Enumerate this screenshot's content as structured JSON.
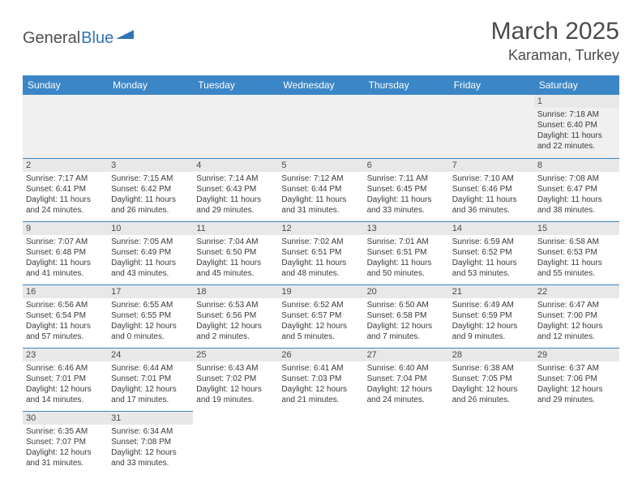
{
  "logo": {
    "part1": "General",
    "part2": "Blue",
    "shape_color": "#2f74b5"
  },
  "title": "March 2025",
  "location": "Karaman, Turkey",
  "header_bg": "#3b86c6",
  "header_fg": "#ffffff",
  "border_color": "#3b86c6",
  "daynum_bg": "#e8e8e8",
  "empty_bg": "#f0f0f0",
  "text_color": "#3a3a3a",
  "days": [
    "Sunday",
    "Monday",
    "Tuesday",
    "Wednesday",
    "Thursday",
    "Friday",
    "Saturday"
  ],
  "weeks": [
    [
      null,
      null,
      null,
      null,
      null,
      null,
      {
        "n": "1",
        "sunrise": "7:18 AM",
        "sunset": "6:40 PM",
        "dl": "11 hours and 22 minutes."
      }
    ],
    [
      {
        "n": "2",
        "sunrise": "7:17 AM",
        "sunset": "6:41 PM",
        "dl": "11 hours and 24 minutes."
      },
      {
        "n": "3",
        "sunrise": "7:15 AM",
        "sunset": "6:42 PM",
        "dl": "11 hours and 26 minutes."
      },
      {
        "n": "4",
        "sunrise": "7:14 AM",
        "sunset": "6:43 PM",
        "dl": "11 hours and 29 minutes."
      },
      {
        "n": "5",
        "sunrise": "7:12 AM",
        "sunset": "6:44 PM",
        "dl": "11 hours and 31 minutes."
      },
      {
        "n": "6",
        "sunrise": "7:11 AM",
        "sunset": "6:45 PM",
        "dl": "11 hours and 33 minutes."
      },
      {
        "n": "7",
        "sunrise": "7:10 AM",
        "sunset": "6:46 PM",
        "dl": "11 hours and 36 minutes."
      },
      {
        "n": "8",
        "sunrise": "7:08 AM",
        "sunset": "6:47 PM",
        "dl": "11 hours and 38 minutes."
      }
    ],
    [
      {
        "n": "9",
        "sunrise": "7:07 AM",
        "sunset": "6:48 PM",
        "dl": "11 hours and 41 minutes."
      },
      {
        "n": "10",
        "sunrise": "7:05 AM",
        "sunset": "6:49 PM",
        "dl": "11 hours and 43 minutes."
      },
      {
        "n": "11",
        "sunrise": "7:04 AM",
        "sunset": "6:50 PM",
        "dl": "11 hours and 45 minutes."
      },
      {
        "n": "12",
        "sunrise": "7:02 AM",
        "sunset": "6:51 PM",
        "dl": "11 hours and 48 minutes."
      },
      {
        "n": "13",
        "sunrise": "7:01 AM",
        "sunset": "6:51 PM",
        "dl": "11 hours and 50 minutes."
      },
      {
        "n": "14",
        "sunrise": "6:59 AM",
        "sunset": "6:52 PM",
        "dl": "11 hours and 53 minutes."
      },
      {
        "n": "15",
        "sunrise": "6:58 AM",
        "sunset": "6:53 PM",
        "dl": "11 hours and 55 minutes."
      }
    ],
    [
      {
        "n": "16",
        "sunrise": "6:56 AM",
        "sunset": "6:54 PM",
        "dl": "11 hours and 57 minutes."
      },
      {
        "n": "17",
        "sunrise": "6:55 AM",
        "sunset": "6:55 PM",
        "dl": "12 hours and 0 minutes."
      },
      {
        "n": "18",
        "sunrise": "6:53 AM",
        "sunset": "6:56 PM",
        "dl": "12 hours and 2 minutes."
      },
      {
        "n": "19",
        "sunrise": "6:52 AM",
        "sunset": "6:57 PM",
        "dl": "12 hours and 5 minutes."
      },
      {
        "n": "20",
        "sunrise": "6:50 AM",
        "sunset": "6:58 PM",
        "dl": "12 hours and 7 minutes."
      },
      {
        "n": "21",
        "sunrise": "6:49 AM",
        "sunset": "6:59 PM",
        "dl": "12 hours and 9 minutes."
      },
      {
        "n": "22",
        "sunrise": "6:47 AM",
        "sunset": "7:00 PM",
        "dl": "12 hours and 12 minutes."
      }
    ],
    [
      {
        "n": "23",
        "sunrise": "6:46 AM",
        "sunset": "7:01 PM",
        "dl": "12 hours and 14 minutes."
      },
      {
        "n": "24",
        "sunrise": "6:44 AM",
        "sunset": "7:01 PM",
        "dl": "12 hours and 17 minutes."
      },
      {
        "n": "25",
        "sunrise": "6:43 AM",
        "sunset": "7:02 PM",
        "dl": "12 hours and 19 minutes."
      },
      {
        "n": "26",
        "sunrise": "6:41 AM",
        "sunset": "7:03 PM",
        "dl": "12 hours and 21 minutes."
      },
      {
        "n": "27",
        "sunrise": "6:40 AM",
        "sunset": "7:04 PM",
        "dl": "12 hours and 24 minutes."
      },
      {
        "n": "28",
        "sunrise": "6:38 AM",
        "sunset": "7:05 PM",
        "dl": "12 hours and 26 minutes."
      },
      {
        "n": "29",
        "sunrise": "6:37 AM",
        "sunset": "7:06 PM",
        "dl": "12 hours and 29 minutes."
      }
    ],
    [
      {
        "n": "30",
        "sunrise": "6:35 AM",
        "sunset": "7:07 PM",
        "dl": "12 hours and 31 minutes."
      },
      {
        "n": "31",
        "sunrise": "6:34 AM",
        "sunset": "7:08 PM",
        "dl": "12 hours and 33 minutes."
      },
      null,
      null,
      null,
      null,
      null
    ]
  ],
  "labels": {
    "sunrise": "Sunrise: ",
    "sunset": "Sunset: ",
    "daylight": "Daylight: "
  }
}
